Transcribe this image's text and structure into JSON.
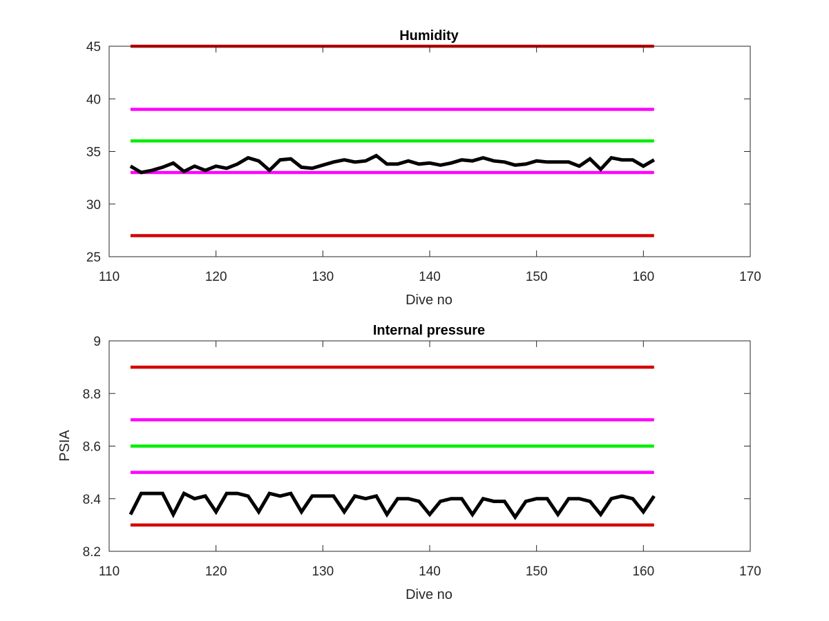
{
  "figure": {
    "background": "#ffffff"
  },
  "chart_data": [
    {
      "type": "line",
      "title": "Humidity",
      "xlabel": "Dive no",
      "ylabel": "",
      "xlim": [
        110,
        170
      ],
      "ylim": [
        25,
        45
      ],
      "xticks": [
        "110",
        "120",
        "130",
        "140",
        "150",
        "160",
        "170"
      ],
      "yticks": [
        "25",
        "30",
        "35",
        "40",
        "45"
      ],
      "grid": false,
      "legend": "none",
      "series": [
        {
          "color": "#d40000",
          "x": [
            112,
            161
          ],
          "values": [
            45,
            45
          ]
        },
        {
          "color": "#ff00ff",
          "x": [
            112,
            161
          ],
          "values": [
            39,
            39
          ]
        },
        {
          "color": "#00ee00",
          "x": [
            112,
            161
          ],
          "values": [
            36,
            36
          ]
        },
        {
          "color": "#ff00ff",
          "x": [
            112,
            161
          ],
          "values": [
            33,
            33
          ]
        },
        {
          "color": "#d40000",
          "x": [
            112,
            161
          ],
          "values": [
            27,
            27
          ]
        },
        {
          "color": "#000000",
          "x": [
            112,
            113,
            114,
            115,
            116,
            117,
            118,
            119,
            120,
            121,
            122,
            123,
            124,
            125,
            126,
            127,
            128,
            129,
            130,
            131,
            132,
            133,
            134,
            135,
            136,
            137,
            138,
            139,
            140,
            141,
            142,
            143,
            144,
            145,
            146,
            147,
            148,
            149,
            150,
            151,
            152,
            153,
            154,
            155,
            156,
            157,
            158,
            159,
            160,
            161
          ],
          "values": [
            33.6,
            33.0,
            33.2,
            33.5,
            33.9,
            33.1,
            33.6,
            33.2,
            33.6,
            33.4,
            33.8,
            34.4,
            34.1,
            33.2,
            34.2,
            34.3,
            33.5,
            33.4,
            33.7,
            34.0,
            34.2,
            34.0,
            34.1,
            34.6,
            33.8,
            33.8,
            34.1,
            33.8,
            33.9,
            33.7,
            33.9,
            34.2,
            34.1,
            34.4,
            34.1,
            34.0,
            33.7,
            33.8,
            34.1,
            34.0,
            34.0,
            34.0,
            33.6,
            34.3,
            33.3,
            34.4,
            34.2,
            34.2,
            33.6,
            34.2
          ]
        }
      ]
    },
    {
      "type": "line",
      "title": "Internal pressure",
      "xlabel": "Dive no",
      "ylabel": "PSIA",
      "xlim": [
        110,
        170
      ],
      "ylim": [
        8.2,
        9.0
      ],
      "xticks": [
        "110",
        "120",
        "130",
        "140",
        "150",
        "160",
        "170"
      ],
      "yticks": [
        "8.2",
        "8.4",
        "8.6",
        "8.8",
        "9"
      ],
      "grid": false,
      "legend": "none",
      "series": [
        {
          "color": "#d40000",
          "x": [
            112,
            161
          ],
          "values": [
            8.9,
            8.9
          ]
        },
        {
          "color": "#ff00ff",
          "x": [
            112,
            161
          ],
          "values": [
            8.7,
            8.7
          ]
        },
        {
          "color": "#00ee00",
          "x": [
            112,
            161
          ],
          "values": [
            8.6,
            8.6
          ]
        },
        {
          "color": "#ff00ff",
          "x": [
            112,
            161
          ],
          "values": [
            8.5,
            8.5
          ]
        },
        {
          "color": "#d40000",
          "x": [
            112,
            161
          ],
          "values": [
            8.3,
            8.3
          ]
        },
        {
          "color": "#000000",
          "x": [
            112,
            113,
            114,
            115,
            116,
            117,
            118,
            119,
            120,
            121,
            122,
            123,
            124,
            125,
            126,
            127,
            128,
            129,
            130,
            131,
            132,
            133,
            134,
            135,
            136,
            137,
            138,
            139,
            140,
            141,
            142,
            143,
            144,
            145,
            146,
            147,
            148,
            149,
            150,
            151,
            152,
            153,
            154,
            155,
            156,
            157,
            158,
            159,
            160,
            161
          ],
          "values": [
            8.34,
            8.42,
            8.42,
            8.42,
            8.34,
            8.42,
            8.4,
            8.41,
            8.35,
            8.42,
            8.42,
            8.41,
            8.35,
            8.42,
            8.41,
            8.42,
            8.35,
            8.41,
            8.41,
            8.41,
            8.35,
            8.41,
            8.4,
            8.41,
            8.34,
            8.4,
            8.4,
            8.39,
            8.34,
            8.39,
            8.4,
            8.4,
            8.34,
            8.4,
            8.39,
            8.39,
            8.33,
            8.39,
            8.4,
            8.4,
            8.34,
            8.4,
            8.4,
            8.39,
            8.34,
            8.4,
            8.41,
            8.4,
            8.35,
            8.41
          ]
        }
      ]
    }
  ]
}
